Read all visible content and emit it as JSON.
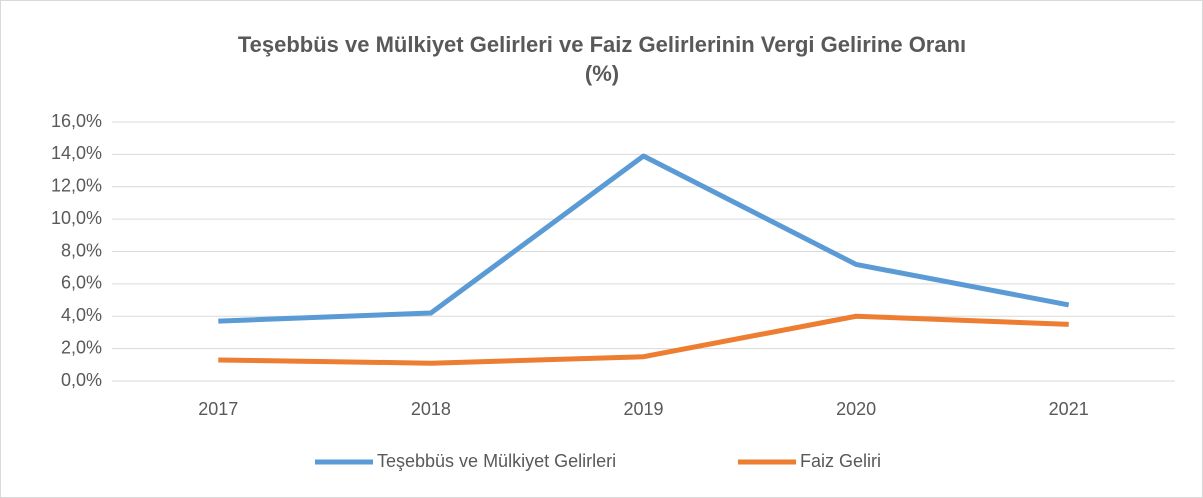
{
  "chart_data": {
    "type": "line",
    "title": [
      "Teşebbüs ve Mülkiyet Gelirleri ve Faiz Gelirlerinin Vergi Gelirine Oranı",
      "(%)"
    ],
    "categories": [
      "2017",
      "2018",
      "2019",
      "2020",
      "2021"
    ],
    "series": [
      {
        "name": "Teşebbüs ve Mülkiyet Gelirleri",
        "color": "#5b9bd5",
        "values": [
          3.7,
          4.2,
          13.9,
          7.2,
          4.7
        ]
      },
      {
        "name": "Faiz Geliri",
        "color": "#ed7d31",
        "values": [
          1.3,
          1.1,
          1.5,
          4.0,
          3.5
        ]
      }
    ],
    "ylim": [
      0,
      16
    ],
    "yticks": [
      {
        "value": 0,
        "label": "0,0%"
      },
      {
        "value": 2,
        "label": "2,0%"
      },
      {
        "value": 4,
        "label": "4,0%"
      },
      {
        "value": 6,
        "label": "6,0%"
      },
      {
        "value": 8,
        "label": "8,0%"
      },
      {
        "value": 10,
        "label": "10,0%"
      },
      {
        "value": 12,
        "label": "12,0%"
      },
      {
        "value": 14,
        "label": "14,0%"
      },
      {
        "value": 16,
        "label": "16,0%"
      }
    ],
    "grid": true,
    "legend": "bottom"
  }
}
